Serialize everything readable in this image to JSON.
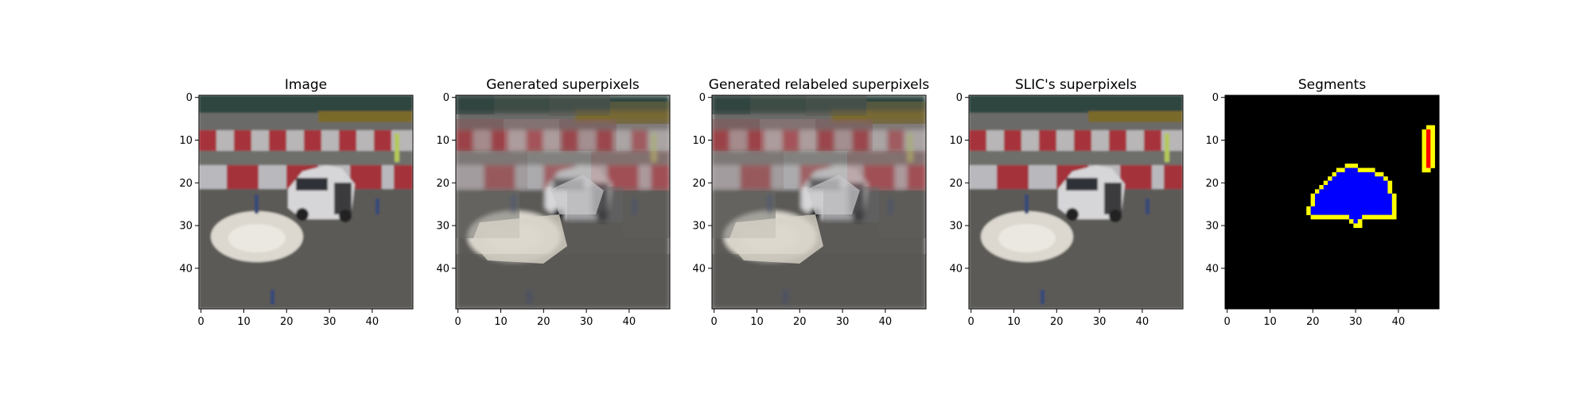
{
  "chart_data": [
    {
      "type": "image",
      "title": "Image",
      "image_size": [
        50,
        50
      ],
      "xlim": [
        -0.5,
        49.5
      ],
      "ylim": [
        49.5,
        -0.5
      ],
      "xticks": [
        0,
        10,
        20,
        30,
        40
      ],
      "yticks": [
        0,
        10,
        20,
        30,
        40
      ],
      "content": "photo"
    },
    {
      "type": "image",
      "title": "Generated superpixels",
      "image_size": [
        50,
        50
      ],
      "xlim": [
        -0.5,
        49.5
      ],
      "ylim": [
        49.5,
        -0.5
      ],
      "xticks": [
        0,
        10,
        20,
        30,
        40
      ],
      "yticks": [
        0,
        10,
        20,
        30,
        40
      ],
      "content": "superpixels-generated"
    },
    {
      "type": "image",
      "title": "Generated relabeled superpixels",
      "image_size": [
        50,
        50
      ],
      "xlim": [
        -0.5,
        49.5
      ],
      "ylim": [
        49.5,
        -0.5
      ],
      "xticks": [
        0,
        10,
        20,
        30,
        40
      ],
      "yticks": [
        0,
        10,
        20,
        30,
        40
      ],
      "content": "superpixels-relabeled"
    },
    {
      "type": "image",
      "title": "SLIC's superpixels",
      "image_size": [
        50,
        50
      ],
      "xlim": [
        -0.5,
        49.5
      ],
      "ylim": [
        49.5,
        -0.5
      ],
      "xticks": [
        0,
        10,
        20,
        30,
        40
      ],
      "yticks": [
        0,
        10,
        20,
        30,
        40
      ],
      "content": "superpixels-slic"
    },
    {
      "type": "image",
      "title": "Segments",
      "image_size": [
        50,
        50
      ],
      "xlim": [
        -0.5,
        49.5
      ],
      "ylim": [
        49.5,
        -0.5
      ],
      "xticks": [
        0,
        10,
        20,
        30,
        40
      ],
      "yticks": [
        0,
        10,
        20,
        30,
        40
      ],
      "content": "segments",
      "colors": {
        "background": "#000000",
        "segment_1": "#0000ff",
        "segment_2": "#ff0000",
        "boundary": "#ffff00"
      },
      "segment_1_rows": [
        [
          16,
          28,
          30
        ],
        [
          17,
          26,
          34
        ],
        [
          18,
          25,
          36
        ],
        [
          19,
          24,
          37
        ],
        [
          20,
          23,
          38
        ],
        [
          21,
          22,
          38
        ],
        [
          22,
          21,
          38
        ],
        [
          23,
          20,
          39
        ],
        [
          24,
          20,
          39
        ],
        [
          25,
          20,
          39
        ],
        [
          26,
          19,
          39
        ],
        [
          27,
          19,
          39
        ],
        [
          28,
          20,
          39
        ],
        [
          29,
          29,
          31
        ],
        [
          30,
          30,
          31
        ]
      ],
      "segment_2_rows": [
        [
          7,
          47,
          48
        ],
        [
          8,
          46,
          48
        ],
        [
          9,
          46,
          48
        ],
        [
          10,
          46,
          48
        ],
        [
          11,
          46,
          48
        ],
        [
          12,
          46,
          48
        ],
        [
          13,
          46,
          48
        ],
        [
          14,
          46,
          48
        ],
        [
          15,
          46,
          48
        ],
        [
          16,
          46,
          48
        ],
        [
          17,
          46,
          47
        ]
      ]
    }
  ]
}
